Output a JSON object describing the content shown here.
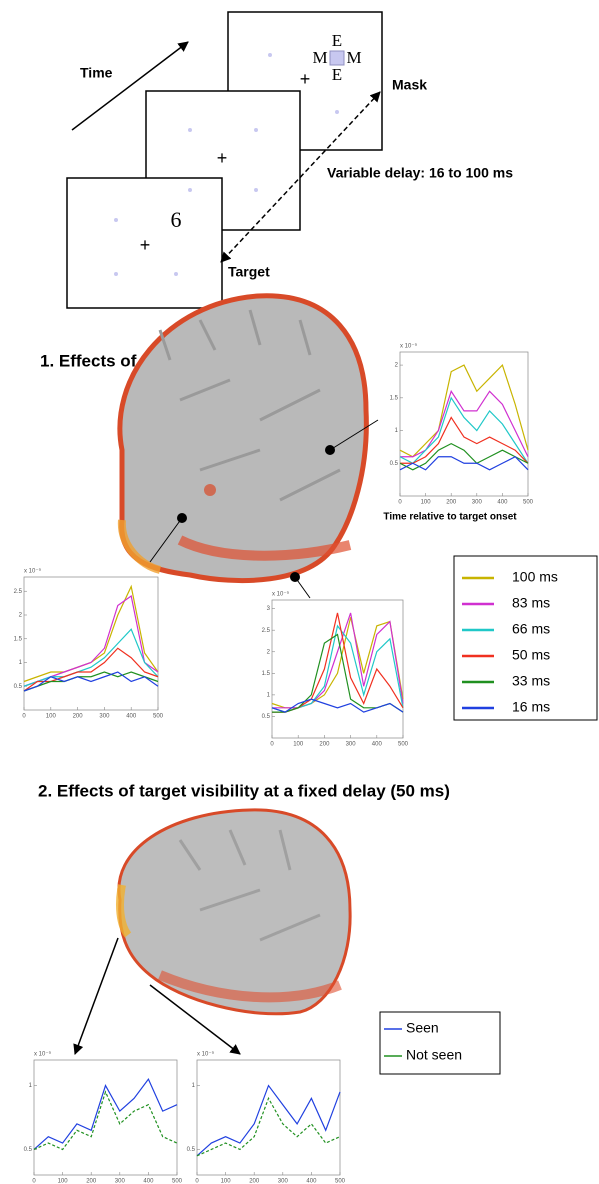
{
  "paradigm": {
    "time_label": "Time",
    "mask_label": "Mask",
    "target_label": "Target",
    "delay_label": "Variable delay: 16 to 100 ms",
    "target_stimulus": "6",
    "mask_letters": [
      "E",
      "M",
      "M",
      "E"
    ],
    "fixation": "+"
  },
  "section1": {
    "title": "1. Effects of target-mask delay",
    "xlabel": "Time relative to target onset"
  },
  "section2": {
    "title": "2. Effects of target visibility at a fixed delay (50 ms)"
  },
  "chart_data": [
    {
      "type": "line",
      "x": [
        0,
        50,
        100,
        150,
        200,
        250,
        300,
        350,
        400,
        450,
        500
      ],
      "xlim": [
        0,
        500
      ],
      "xticks": [
        0,
        100,
        200,
        300,
        400,
        500
      ],
      "ylim": [
        0,
        2.2
      ],
      "yticks": [
        0.5,
        1,
        1.5,
        2
      ],
      "scale_label": "x 10⁻⁹",
      "series": [
        {
          "name": "100 ms",
          "color": "#c8b400",
          "values": [
            0.7,
            0.6,
            0.8,
            1.0,
            1.9,
            2.0,
            1.6,
            1.8,
            2.0,
            1.4,
            0.7
          ]
        },
        {
          "name": "83 ms",
          "color": "#d030d0",
          "values": [
            0.6,
            0.6,
            0.7,
            1.0,
            1.6,
            1.3,
            1.3,
            1.6,
            1.4,
            1.0,
            0.6
          ]
        },
        {
          "name": "66 ms",
          "color": "#20c8c8",
          "values": [
            0.6,
            0.5,
            0.7,
            0.9,
            1.5,
            1.2,
            1.0,
            1.3,
            1.1,
            0.8,
            0.5
          ]
        },
        {
          "name": "50 ms",
          "color": "#f03020",
          "values": [
            0.5,
            0.5,
            0.6,
            0.8,
            1.2,
            0.9,
            0.8,
            0.9,
            0.8,
            0.7,
            0.5
          ]
        },
        {
          "name": "33 ms",
          "color": "#209020",
          "values": [
            0.5,
            0.4,
            0.5,
            0.7,
            0.8,
            0.7,
            0.5,
            0.6,
            0.7,
            0.6,
            0.5
          ]
        },
        {
          "name": "16 ms",
          "color": "#2040e0",
          "values": [
            0.4,
            0.5,
            0.4,
            0.6,
            0.6,
            0.5,
            0.5,
            0.4,
            0.5,
            0.6,
            0.4
          ]
        }
      ]
    },
    {
      "type": "line",
      "x": [
        0,
        50,
        100,
        150,
        200,
        250,
        300,
        350,
        400,
        450,
        500
      ],
      "xlim": [
        0,
        500
      ],
      "xticks": [
        0,
        100,
        200,
        300,
        400,
        500
      ],
      "ylim": [
        0,
        2.8
      ],
      "yticks": [
        0.5,
        1,
        1.5,
        2,
        2.5
      ],
      "scale_label": "x 10⁻⁹",
      "series": [
        {
          "color": "#c8b400",
          "values": [
            0.6,
            0.7,
            0.8,
            0.8,
            0.9,
            1.0,
            1.2,
            2.0,
            2.6,
            1.2,
            0.8
          ]
        },
        {
          "color": "#d030d0",
          "values": [
            0.5,
            0.6,
            0.7,
            0.8,
            0.9,
            1.0,
            1.3,
            2.2,
            2.4,
            1.0,
            0.8
          ]
        },
        {
          "color": "#20c8c8",
          "values": [
            0.5,
            0.6,
            0.7,
            0.7,
            0.8,
            0.9,
            1.1,
            1.4,
            1.7,
            1.0,
            0.7
          ]
        },
        {
          "color": "#f03020",
          "values": [
            0.4,
            0.6,
            0.6,
            0.7,
            0.8,
            0.8,
            1.0,
            1.3,
            1.1,
            0.8,
            0.7
          ]
        },
        {
          "color": "#209020",
          "values": [
            0.4,
            0.5,
            0.6,
            0.6,
            0.7,
            0.7,
            0.8,
            0.7,
            0.8,
            0.7,
            0.6
          ]
        },
        {
          "color": "#2040e0",
          "values": [
            0.4,
            0.5,
            0.7,
            0.6,
            0.7,
            0.6,
            0.7,
            0.8,
            0.6,
            0.7,
            0.5
          ]
        }
      ]
    },
    {
      "type": "line",
      "x": [
        0,
        50,
        100,
        150,
        200,
        250,
        300,
        350,
        400,
        450,
        500
      ],
      "xlim": [
        0,
        500
      ],
      "xticks": [
        0,
        100,
        200,
        300,
        400,
        500
      ],
      "ylim": [
        0,
        3.2
      ],
      "yticks": [
        0.5,
        1,
        1.5,
        2,
        2.5,
        3
      ],
      "scale_label": "x 10⁻⁹",
      "series": [
        {
          "color": "#c8b400",
          "values": [
            0.8,
            0.7,
            0.7,
            0.8,
            1.0,
            1.5,
            2.8,
            1.5,
            2.6,
            2.7,
            0.9
          ]
        },
        {
          "color": "#d030d0",
          "values": [
            0.7,
            0.7,
            0.7,
            0.8,
            1.1,
            2.0,
            2.9,
            1.2,
            2.4,
            2.7,
            0.8
          ]
        },
        {
          "color": "#20c8c8",
          "values": [
            0.7,
            0.6,
            0.7,
            0.8,
            1.2,
            2.6,
            2.2,
            1.0,
            2.0,
            2.3,
            0.7
          ]
        },
        {
          "color": "#f03020",
          "values": [
            0.6,
            0.6,
            0.7,
            0.9,
            1.6,
            2.9,
            1.4,
            0.8,
            1.6,
            1.2,
            0.7
          ]
        },
        {
          "color": "#209020",
          "values": [
            0.6,
            0.6,
            0.7,
            1.0,
            2.2,
            2.4,
            0.9,
            0.7,
            0.7,
            0.8,
            0.6
          ]
        },
        {
          "color": "#2040e0",
          "values": [
            0.7,
            0.6,
            0.8,
            0.9,
            0.8,
            0.7,
            0.8,
            0.6,
            0.7,
            0.8,
            0.6
          ]
        }
      ]
    },
    {
      "type": "line",
      "x": [
        0,
        50,
        100,
        150,
        200,
        250,
        300,
        350,
        400,
        450,
        500
      ],
      "xlim": [
        0,
        500
      ],
      "xticks": [
        0,
        100,
        200,
        300,
        400,
        500
      ],
      "ylim": [
        0.3,
        1.2
      ],
      "yticks": [
        0.5,
        1
      ],
      "scale_label": "x 10⁻⁹",
      "series": [
        {
          "name": "Seen",
          "color": "#2040e0",
          "values": [
            0.5,
            0.6,
            0.55,
            0.7,
            0.65,
            1.0,
            0.8,
            0.9,
            1.05,
            0.8,
            0.85
          ]
        },
        {
          "name": "Not seen",
          "color": "#209020",
          "values": [
            0.5,
            0.55,
            0.5,
            0.65,
            0.6,
            0.95,
            0.7,
            0.8,
            0.85,
            0.6,
            0.55
          ]
        }
      ]
    },
    {
      "type": "line",
      "x": [
        0,
        50,
        100,
        150,
        200,
        250,
        300,
        350,
        400,
        450,
        500
      ],
      "xlim": [
        0,
        500
      ],
      "xticks": [
        0,
        100,
        200,
        300,
        400,
        500
      ],
      "ylim": [
        0.3,
        1.2
      ],
      "yticks": [
        0.5,
        1
      ],
      "scale_label": "x 10⁻⁹",
      "series": [
        {
          "color": "#2040e0",
          "values": [
            0.45,
            0.55,
            0.6,
            0.55,
            0.7,
            1.0,
            0.85,
            0.7,
            0.9,
            0.65,
            0.95
          ]
        },
        {
          "color": "#209020",
          "values": [
            0.45,
            0.5,
            0.55,
            0.5,
            0.6,
            0.9,
            0.7,
            0.6,
            0.7,
            0.55,
            0.6
          ]
        }
      ]
    }
  ]
}
